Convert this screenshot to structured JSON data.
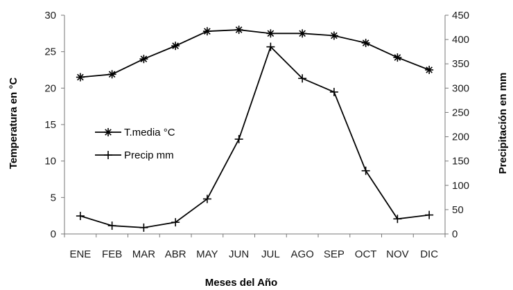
{
  "chart_data": {
    "type": "line",
    "categories": [
      "ENE",
      "FEB",
      "MAR",
      "ABR",
      "MAY",
      "JUN",
      "JUL",
      "AGO",
      "SEP",
      "OCT",
      "NOV",
      "DIC"
    ],
    "series": [
      {
        "name": "T.media °C",
        "axis": "left",
        "marker": "asterisk",
        "values": [
          21.5,
          21.9,
          24.0,
          25.8,
          27.8,
          28.0,
          27.5,
          27.5,
          27.2,
          26.2,
          24.2,
          22.5
        ]
      },
      {
        "name": "Precip mm",
        "axis": "right",
        "marker": "plus",
        "values": [
          37,
          17,
          13,
          24,
          72,
          195,
          385,
          320,
          292,
          130,
          31,
          39
        ]
      }
    ],
    "xlabel": "Meses del Año",
    "ylabel_left": "Temperatura en °C",
    "ylabel_right": "Precipitación en mm",
    "ylim_left": [
      0,
      30
    ],
    "yticks_left": [
      0,
      5,
      10,
      15,
      20,
      25,
      30
    ],
    "ylim_right": [
      0,
      450
    ],
    "yticks_right": [
      0,
      50,
      100,
      150,
      200,
      250,
      300,
      350,
      400,
      450
    ],
    "grid": false,
    "legend_position": "center-left",
    "line_color": "#000000"
  }
}
